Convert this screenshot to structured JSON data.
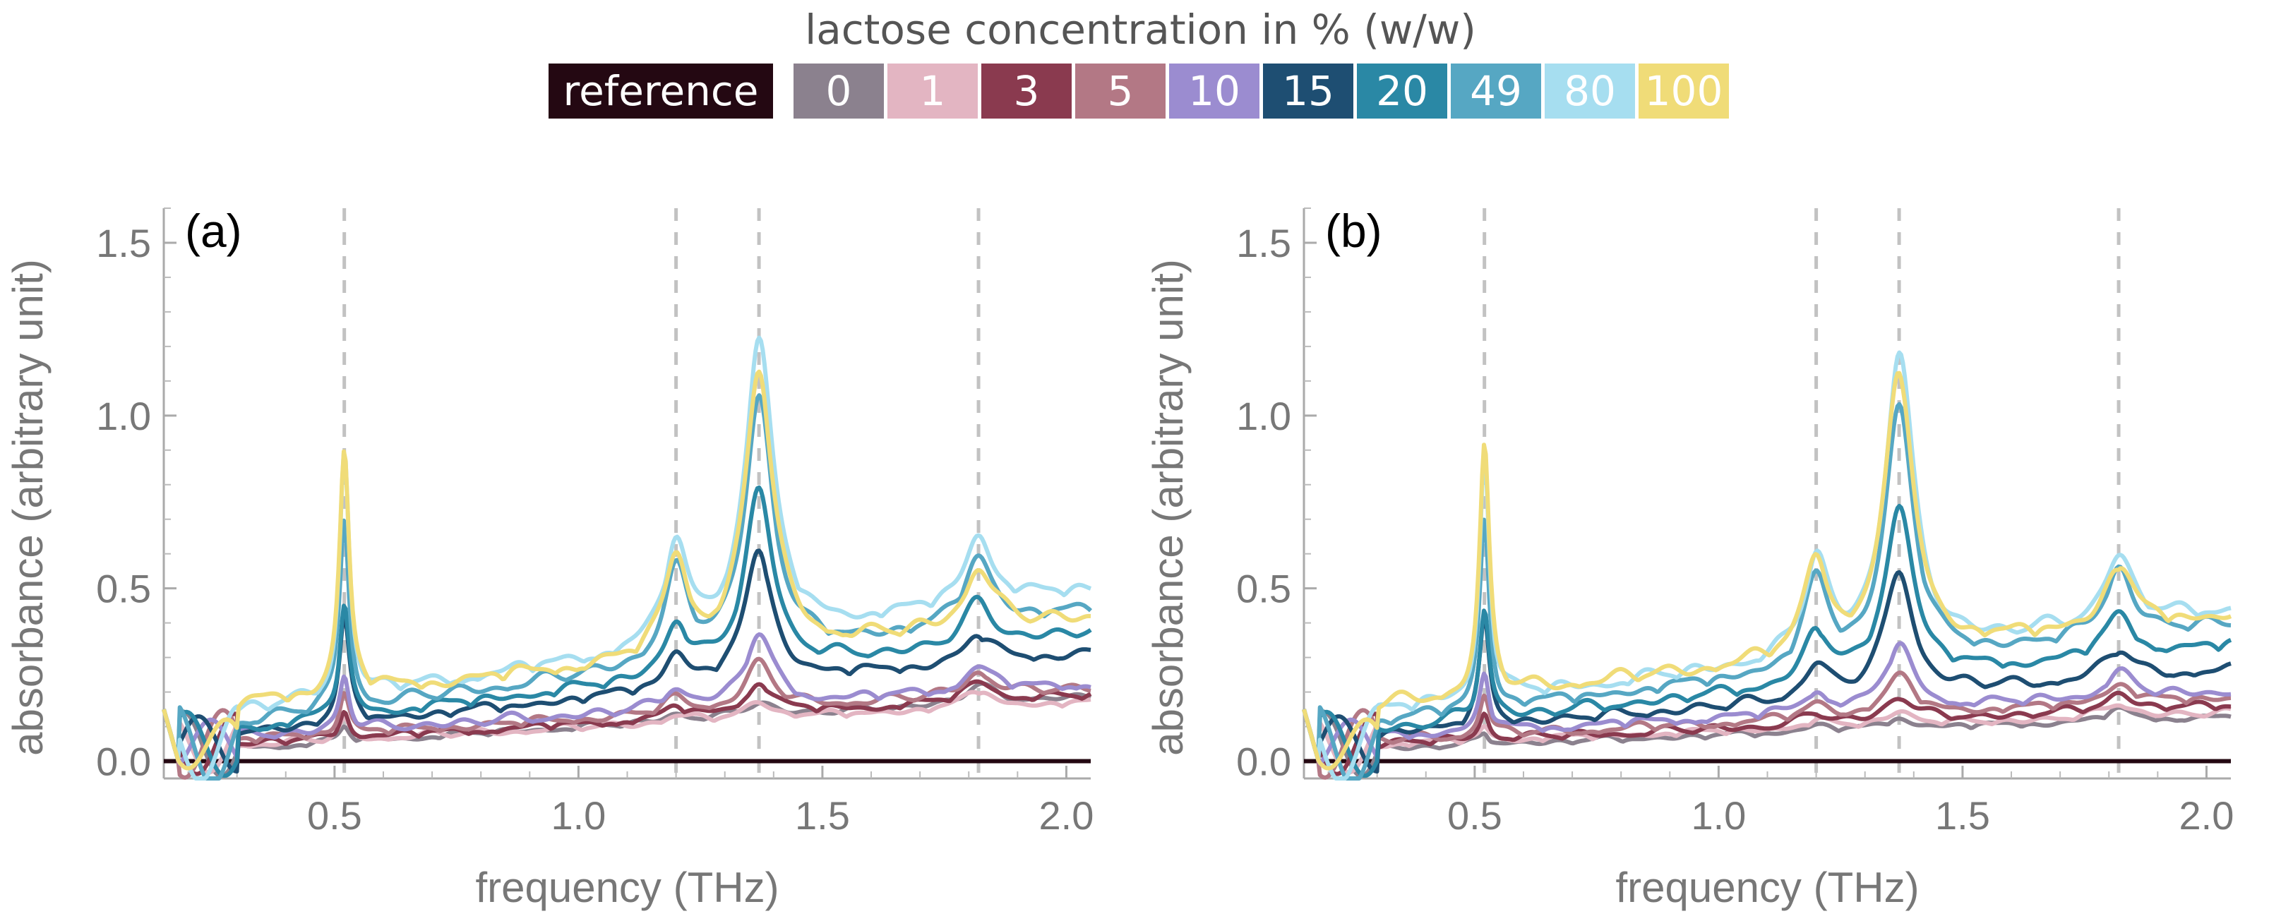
{
  "legend": {
    "title": "lactose concentration in % (w/w)",
    "entries": [
      {
        "label": "reference",
        "color": "#240812"
      },
      {
        "label": "0",
        "color": "#8b818e"
      },
      {
        "label": "1",
        "color": "#e3b5c2"
      },
      {
        "label": "3",
        "color": "#8a3a4f"
      },
      {
        "label": "5",
        "color": "#b37885"
      },
      {
        "label": "10",
        "color": "#9b8cd0"
      },
      {
        "label": "15",
        "color": "#1e4e72"
      },
      {
        "label": "20",
        "color": "#2a88a5"
      },
      {
        "label": "49",
        "color": "#56a7c3"
      },
      {
        "label": "80",
        "color": "#a6def0"
      },
      {
        "label": "100",
        "color": "#f0dc78"
      }
    ]
  },
  "chart_data": [
    {
      "type": "line",
      "panel_label": "(a)",
      "xlabel": "frequency (THz)",
      "ylabel": "absorbance (arbitrary unit)",
      "xlim": [
        0.15,
        2.05
      ],
      "ylim": [
        -0.05,
        1.6
      ],
      "xticks": [
        "0.5",
        "1.0",
        "1.5",
        "2.0"
      ],
      "yticks": [
        "0.0",
        "0.5",
        "1.0",
        "1.5"
      ],
      "peak_lines": [
        0.52,
        1.2,
        1.37,
        1.82
      ],
      "reference": 0,
      "series": [
        {
          "name": "0",
          "peaks": [
            0.04,
            0.02,
            0.04,
            0.05
          ],
          "baseline": [
            0.03,
            0.18
          ]
        },
        {
          "name": "1",
          "peaks": [
            0.05,
            0.02,
            0.05,
            0.05
          ],
          "baseline": [
            0.04,
            0.16
          ]
        },
        {
          "name": "3",
          "peaks": [
            0.08,
            0.03,
            0.09,
            0.06
          ],
          "baseline": [
            0.04,
            0.18
          ]
        },
        {
          "name": "5",
          "peaks": [
            0.12,
            0.04,
            0.13,
            0.07
          ],
          "baseline": [
            0.05,
            0.2
          ]
        },
        {
          "name": "10",
          "peaks": [
            0.16,
            0.06,
            0.2,
            0.07
          ],
          "baseline": [
            0.06,
            0.21
          ]
        },
        {
          "name": "15",
          "peaks": [
            0.3,
            0.1,
            0.38,
            0.08
          ],
          "baseline": [
            0.07,
            0.3
          ]
        },
        {
          "name": "20",
          "peaks": [
            0.32,
            0.15,
            0.52,
            0.12
          ],
          "baseline": [
            0.08,
            0.36
          ]
        },
        {
          "name": "49",
          "peaks": [
            0.55,
            0.25,
            0.74,
            0.2
          ],
          "baseline": [
            0.1,
            0.42
          ]
        },
        {
          "name": "80",
          "peaks": [
            0.72,
            0.28,
            0.85,
            0.2
          ],
          "baseline": [
            0.13,
            0.48
          ]
        },
        {
          "name": "100",
          "peaks": [
            0.7,
            0.28,
            0.8,
            0.18
          ],
          "baseline": [
            0.15,
            0.4
          ]
        }
      ]
    },
    {
      "type": "line",
      "panel_label": "(b)",
      "xlabel": "frequency (THz)",
      "ylabel": "absorbance (arbitrary unit)",
      "xlim": [
        0.15,
        2.05
      ],
      "ylim": [
        -0.05,
        1.6
      ],
      "xticks": [
        "0.5",
        "1.0",
        "1.5",
        "2.0"
      ],
      "yticks": [
        "0.0",
        "0.5",
        "1.0",
        "1.5"
      ],
      "peak_lines": [
        0.52,
        1.2,
        1.37,
        1.82
      ],
      "reference": 0,
      "series": [
        {
          "name": "0",
          "peaks": [
            0.03,
            0.02,
            0.03,
            0.03
          ],
          "baseline": [
            0.03,
            0.12
          ]
        },
        {
          "name": "1",
          "peaks": [
            0.04,
            0.02,
            0.04,
            0.04
          ],
          "baseline": [
            0.04,
            0.13
          ]
        },
        {
          "name": "3",
          "peaks": [
            0.08,
            0.03,
            0.07,
            0.05
          ],
          "baseline": [
            0.04,
            0.15
          ]
        },
        {
          "name": "5",
          "peaks": [
            0.12,
            0.04,
            0.11,
            0.06
          ],
          "baseline": [
            0.05,
            0.17
          ]
        },
        {
          "name": "10",
          "peaks": [
            0.16,
            0.06,
            0.18,
            0.07
          ],
          "baseline": [
            0.06,
            0.19
          ]
        },
        {
          "name": "15",
          "peaks": [
            0.3,
            0.1,
            0.36,
            0.08
          ],
          "baseline": [
            0.07,
            0.25
          ]
        },
        {
          "name": "20",
          "peaks": [
            0.32,
            0.15,
            0.5,
            0.12
          ],
          "baseline": [
            0.08,
            0.32
          ]
        },
        {
          "name": "49",
          "peaks": [
            0.55,
            0.25,
            0.74,
            0.2
          ],
          "baseline": [
            0.1,
            0.38
          ]
        },
        {
          "name": "80",
          "peaks": [
            0.72,
            0.28,
            0.85,
            0.2
          ],
          "baseline": [
            0.13,
            0.42
          ]
        },
        {
          "name": "100",
          "peaks": [
            0.7,
            0.28,
            0.8,
            0.18
          ],
          "baseline": [
            0.15,
            0.4
          ]
        }
      ]
    }
  ]
}
